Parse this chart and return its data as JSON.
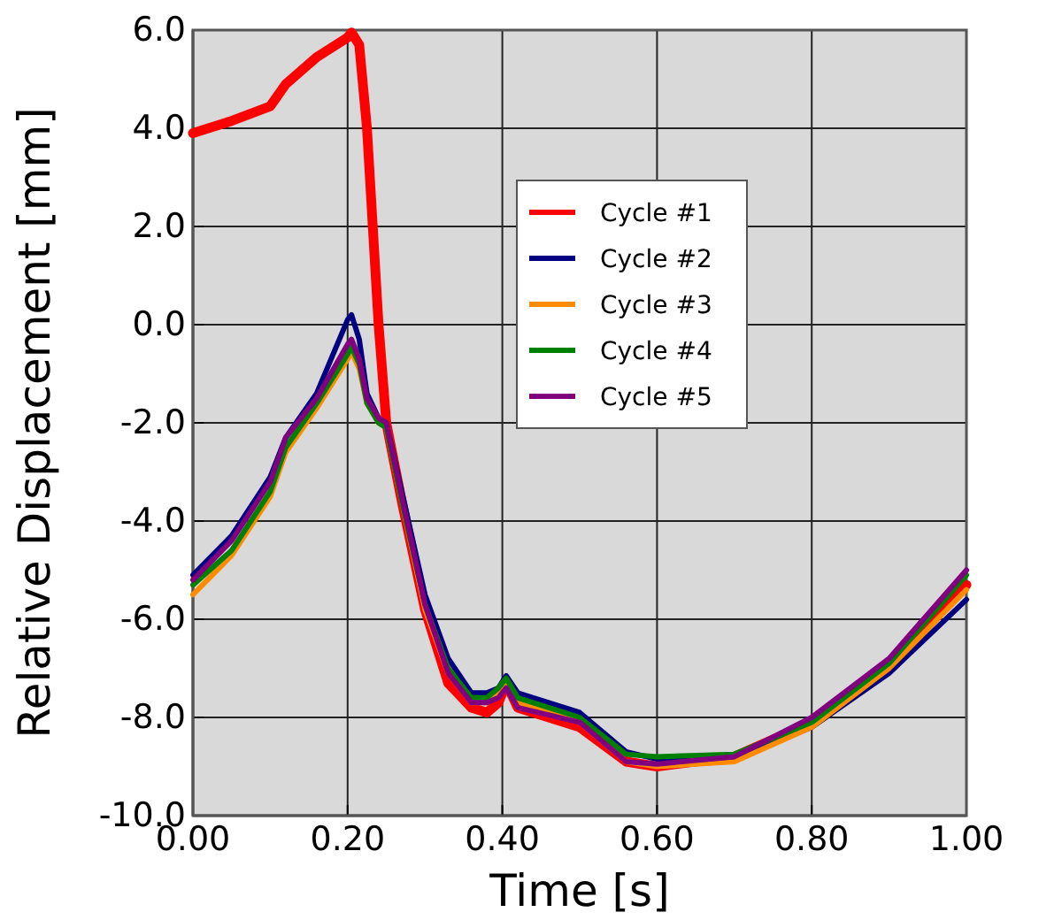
{
  "chart_data": {
    "type": "line",
    "xlabel": "Time [s]",
    "ylabel": "Relative Displacement [mm]",
    "xlim": [
      0,
      1
    ],
    "ylim": [
      -10,
      6
    ],
    "xticks": [
      {
        "value": 0,
        "label": "0.00"
      },
      {
        "value": 0.2,
        "label": "0.20"
      },
      {
        "value": 0.4,
        "label": "0.40"
      },
      {
        "value": 0.6,
        "label": "0.60"
      },
      {
        "value": 0.8,
        "label": "0.80"
      },
      {
        "value": 1,
        "label": "1.00"
      }
    ],
    "yticks": [
      {
        "value": -10,
        "label": "-10.0"
      },
      {
        "value": -8,
        "label": "-8.0"
      },
      {
        "value": -6,
        "label": "-6.0"
      },
      {
        "value": -4,
        "label": "-4.0"
      },
      {
        "value": -2,
        "label": "-2.0"
      },
      {
        "value": 0,
        "label": "0.0"
      },
      {
        "value": 2,
        "label": "2.0"
      },
      {
        "value": 4,
        "label": "4.0"
      },
      {
        "value": 6,
        "label": "6.0"
      }
    ],
    "grid": true,
    "legend": "center",
    "line_style": "solid",
    "x": [
      0,
      0.05,
      0.1,
      0.12,
      0.16,
      0.2,
      0.205,
      0.215,
      0.225,
      0.24,
      0.25,
      0.27,
      0.3,
      0.33,
      0.36,
      0.38,
      0.395,
      0.405,
      0.42,
      0.5,
      0.56,
      0.6,
      0.7,
      0.8,
      0.9,
      1.0
    ],
    "series": [
      {
        "name": "Cycle #1",
        "color": "#ff0000",
        "values": [
          3.9,
          4.15,
          4.45,
          4.9,
          5.45,
          5.85,
          5.95,
          5.7,
          4,
          0,
          -2,
          -3.6,
          -5.8,
          -7.3,
          -7.8,
          -7.9,
          -7.7,
          -7.3,
          -7.8,
          -8.2,
          -8.9,
          -9.0,
          -8.8,
          -8.1,
          -6.9,
          -5.3
        ]
      },
      {
        "name": "Cycle #2",
        "color": "#000080",
        "values": [
          -5.1,
          -4.3,
          -3.1,
          -2.3,
          -1.4,
          0.1,
          0.2,
          -0.3,
          -1.4,
          -1.9,
          -2.0,
          -3.4,
          -5.5,
          -6.8,
          -7.5,
          -7.5,
          -7.4,
          -7.15,
          -7.5,
          -7.9,
          -8.7,
          -8.85,
          -8.85,
          -8.2,
          -7.1,
          -5.6
        ]
      },
      {
        "name": "Cycle #3",
        "color": "#ff8c00",
        "values": [
          -5.5,
          -4.7,
          -3.5,
          -2.6,
          -1.7,
          -0.7,
          -0.55,
          -0.9,
          -1.6,
          -2.0,
          -2.1,
          -3.6,
          -5.8,
          -7.1,
          -7.7,
          -7.7,
          -7.5,
          -7.3,
          -7.7,
          -8.1,
          -8.9,
          -9.0,
          -8.9,
          -8.2,
          -7.0,
          -5.4
        ]
      },
      {
        "name": "Cycle #4",
        "color": "#008000",
        "values": [
          -5.3,
          -4.6,
          -3.4,
          -2.5,
          -1.6,
          -0.6,
          -0.45,
          -0.8,
          -1.6,
          -2.0,
          -2.1,
          -3.6,
          -5.7,
          -7.0,
          -7.6,
          -7.6,
          -7.4,
          -7.2,
          -7.6,
          -8.0,
          -8.75,
          -8.8,
          -8.75,
          -8.1,
          -6.9,
          -5.1
        ]
      },
      {
        "name": "Cycle #5",
        "color": "#800080",
        "values": [
          -5.2,
          -4.4,
          -3.2,
          -2.3,
          -1.5,
          -0.4,
          -0.3,
          -0.7,
          -1.5,
          -1.9,
          -2.0,
          -3.5,
          -5.7,
          -7.1,
          -7.7,
          -7.7,
          -7.6,
          -7.4,
          -7.8,
          -8.1,
          -8.9,
          -8.95,
          -8.8,
          -8.0,
          -6.8,
          -5.0
        ]
      }
    ]
  }
}
